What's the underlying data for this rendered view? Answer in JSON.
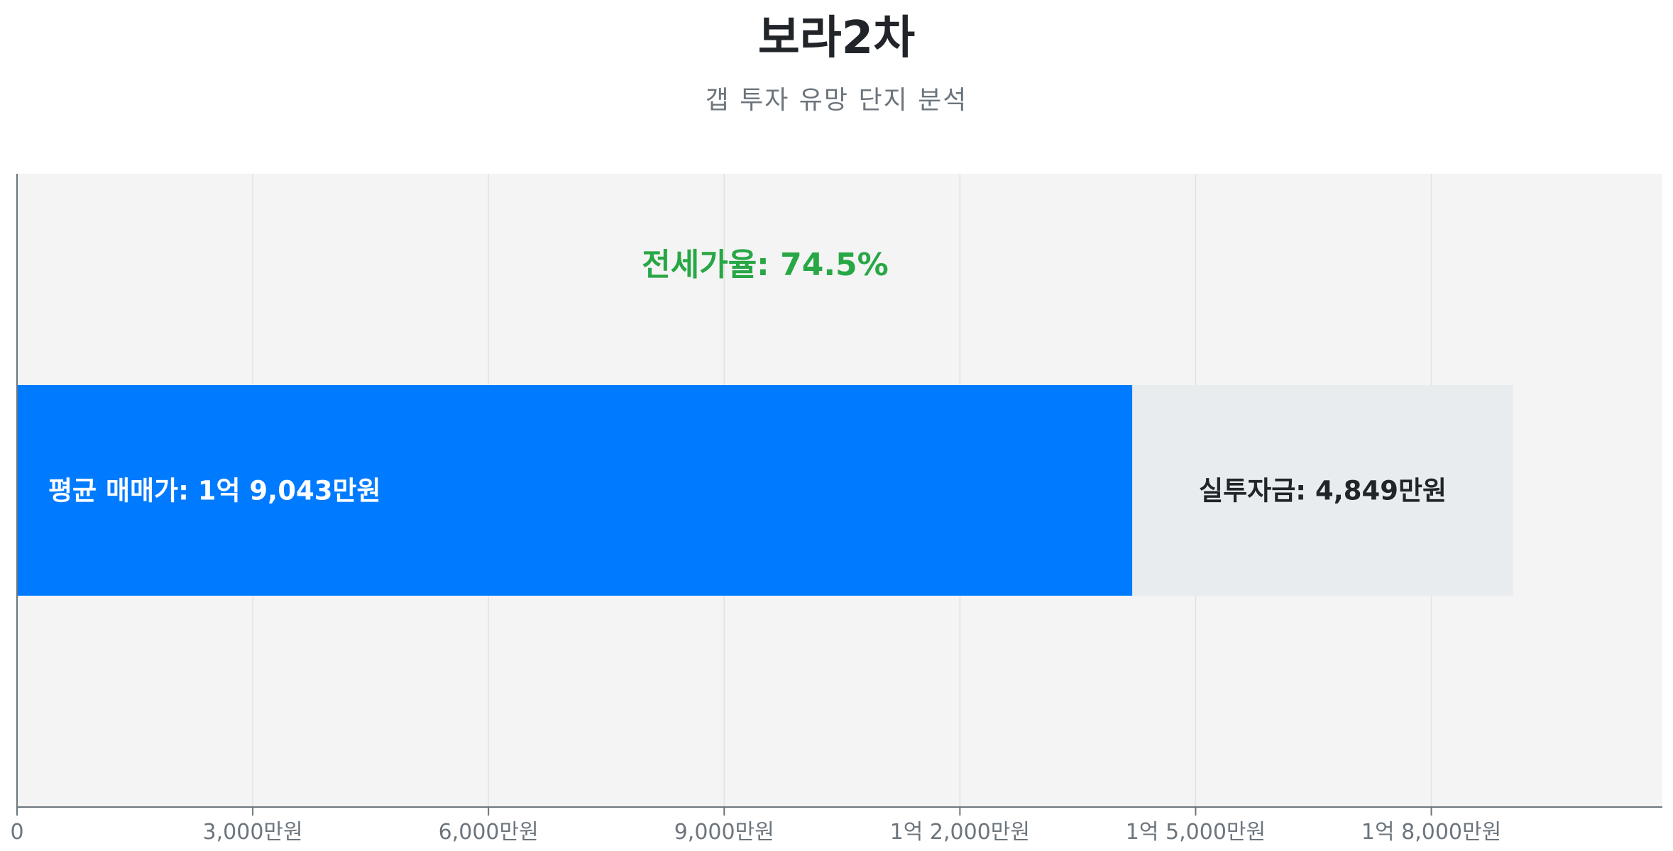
{
  "header": {
    "title": "보라2차",
    "subtitle": "갭 투자 유망 단지 분석"
  },
  "chart_data": {
    "type": "bar",
    "orientation": "horizontal-stacked",
    "xlim": [
      0,
      20940
    ],
    "unit": "만원",
    "ticks": [
      {
        "value": 0,
        "label": "0"
      },
      {
        "value": 3000,
        "label": "3,000만원"
      },
      {
        "value": 6000,
        "label": "6,000만원"
      },
      {
        "value": 9000,
        "label": "9,000만원"
      },
      {
        "value": 12000,
        "label": "1억 2,000만원"
      },
      {
        "value": 15000,
        "label": "1억 5,000만원"
      },
      {
        "value": 18000,
        "label": "1억 8,000만원"
      }
    ],
    "grid": true,
    "series": [
      {
        "value": 14194,
        "label": "평균 매매가: 1억 9,043만원",
        "color": "#007bff",
        "label_color": "#ffffff"
      },
      {
        "value": 4849,
        "label": "실투자금: 4,849만원",
        "color": "#e9ecef",
        "label_color": "#212529"
      }
    ],
    "annotation": {
      "text": "전세가율: 74.5%",
      "color": "#28a745"
    },
    "background": "#f4f4f4"
  }
}
